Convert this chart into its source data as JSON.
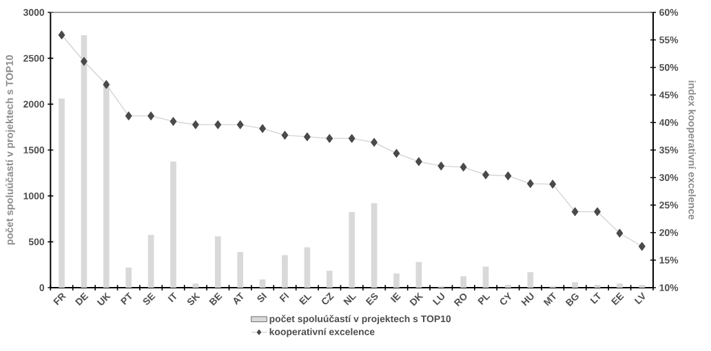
{
  "chart_data": {
    "type": "bar",
    "categories": [
      "FR",
      "DE",
      "UK",
      "PT",
      "SE",
      "IT",
      "SK",
      "BE",
      "AT",
      "SI",
      "FI",
      "EL",
      "CZ",
      "NL",
      "ES",
      "IE",
      "DK",
      "LU",
      "RO",
      "PL",
      "CY",
      "HU",
      "MT",
      "BG",
      "LT",
      "EE",
      "LV"
    ],
    "series": [
      {
        "name": "počet spoluúčastí v projektech s TOP10",
        "color": "#d9d9d9",
        "values": [
          2060,
          2750,
          2200,
          220,
          575,
          1375,
          45,
          560,
          390,
          90,
          355,
          440,
          185,
          825,
          920,
          155,
          280,
          15,
          125,
          230,
          30,
          170,
          15,
          60,
          30,
          45,
          30
        ]
      },
      {
        "name": "kooperativní excelence",
        "type": "line",
        "axis": "y2",
        "marker": "diamond",
        "color": "#4a4a4a",
        "values": [
          55.9,
          51.1,
          46.9,
          41.2,
          41.2,
          40.2,
          39.6,
          39.6,
          39.6,
          38.9,
          37.7,
          37.4,
          37.1,
          37.1,
          36.4,
          34.4,
          32.9,
          32.1,
          31.9,
          30.5,
          30.3,
          28.9,
          28.8,
          23.8,
          23.8,
          19.9,
          17.5
        ]
      }
    ],
    "ylabel": "počet spoluúčastí v projektech s TOP10",
    "y2label": "index kooperativní excelence",
    "ylim": [
      0,
      3000
    ],
    "yticks": [
      0,
      500,
      1000,
      1500,
      2000,
      2500,
      3000
    ],
    "y2lim": [
      10,
      60
    ],
    "y2ticks": [
      {
        "value": 10,
        "label": "10%"
      },
      {
        "value": 15,
        "label": "15%"
      },
      {
        "value": 20,
        "label": "20%"
      },
      {
        "value": 25,
        "label": "25%"
      },
      {
        "value": 30,
        "label": "30%"
      },
      {
        "value": 35,
        "label": "35%"
      },
      {
        "value": 40,
        "label": "40%"
      },
      {
        "value": 45,
        "label": "45%"
      },
      {
        "value": 50,
        "label": "50%"
      },
      {
        "value": 55,
        "label": "55%"
      },
      {
        "value": 60,
        "label": "60%"
      }
    ],
    "legend": "bottom",
    "grid": false
  }
}
